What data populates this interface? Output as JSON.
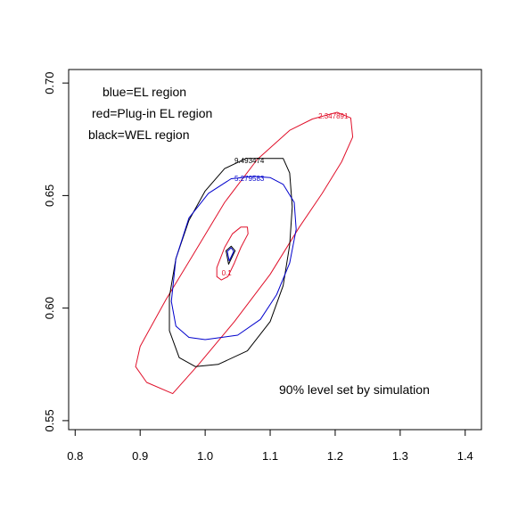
{
  "chart_data": {
    "type": "line",
    "title": "",
    "xlabel": "",
    "ylabel": "",
    "xlim": [
      0.79,
      1.425
    ],
    "ylim": [
      0.546,
      0.706
    ],
    "xticks": [
      "0.8",
      "0.9",
      "1.0",
      "1.1",
      "1.2",
      "1.3",
      "1.4"
    ],
    "xtick_values": [
      0.8,
      0.9,
      1.0,
      1.1,
      1.2,
      1.3,
      1.4
    ],
    "yticks": [
      "0.55",
      "0.60",
      "0.65",
      "0.70"
    ],
    "ytick_values": [
      0.55,
      0.6,
      0.65,
      0.7
    ],
    "grid": false,
    "annotations": [
      "blue=EL region",
      "red=Plug-in EL region",
      "black=WEL region",
      "90% level set by simulation"
    ],
    "series": [
      {
        "color": "#e0102a",
        "label": "2.347891",
        "label_at": [
          1.197,
          0.6843
        ],
        "points": [
          [
            1.165,
            0.684
          ],
          [
            1.203,
            0.687
          ],
          [
            1.224,
            0.6845
          ],
          [
            1.227,
            0.676
          ],
          [
            1.21,
            0.665
          ],
          [
            1.18,
            0.651
          ],
          [
            1.145,
            0.636
          ],
          [
            1.1,
            0.615
          ],
          [
            1.045,
            0.594
          ],
          [
            0.99,
            0.575
          ],
          [
            0.95,
            0.562
          ],
          [
            0.91,
            0.567
          ],
          [
            0.893,
            0.574
          ],
          [
            0.9,
            0.583
          ],
          [
            0.94,
            0.604
          ],
          [
            0.98,
            0.623
          ],
          [
            1.03,
            0.647
          ],
          [
            1.08,
            0.666
          ],
          [
            1.13,
            0.679
          ],
          [
            1.165,
            0.684
          ]
        ]
      },
      {
        "color": "#e0102a",
        "label": "0.1",
        "label_at": [
          1.033,
          0.6145
        ],
        "points": [
          [
            1.055,
            0.636
          ],
          [
            1.065,
            0.636
          ],
          [
            1.066,
            0.633
          ],
          [
            1.055,
            0.627
          ],
          [
            1.045,
            0.62
          ],
          [
            1.035,
            0.614
          ],
          [
            1.025,
            0.6125
          ],
          [
            1.018,
            0.614
          ],
          [
            1.018,
            0.618
          ],
          [
            1.03,
            0.627
          ],
          [
            1.042,
            0.633
          ],
          [
            1.055,
            0.636
          ]
        ]
      },
      {
        "color": "#000000",
        "label": "9.493474",
        "label_at": [
          1.068,
          0.6645
        ],
        "points": [
          [
            1.063,
            0.6665
          ],
          [
            1.12,
            0.6665
          ],
          [
            1.13,
            0.66
          ],
          [
            1.134,
            0.645
          ],
          [
            1.13,
            0.628
          ],
          [
            1.12,
            0.61
          ],
          [
            1.1,
            0.594
          ],
          [
            1.065,
            0.581
          ],
          [
            1.02,
            0.575
          ],
          [
            0.985,
            0.574
          ],
          [
            0.96,
            0.578
          ],
          [
            0.945,
            0.59
          ],
          [
            0.945,
            0.605
          ],
          [
            0.955,
            0.622
          ],
          [
            0.975,
            0.639
          ],
          [
            1.0,
            0.652
          ],
          [
            1.03,
            0.662
          ],
          [
            1.063,
            0.6665
          ]
        ]
      },
      {
        "color": "#0000cc",
        "label": "5.279583",
        "label_at": [
          1.068,
          0.6565
        ],
        "points": [
          [
            1.04,
            0.6575
          ],
          [
            1.075,
            0.6585
          ],
          [
            1.1,
            0.658
          ],
          [
            1.12,
            0.655
          ],
          [
            1.137,
            0.647
          ],
          [
            1.14,
            0.635
          ],
          [
            1.13,
            0.62
          ],
          [
            1.11,
            0.606
          ],
          [
            1.085,
            0.595
          ],
          [
            1.05,
            0.588
          ],
          [
            1.0,
            0.586
          ],
          [
            0.975,
            0.587
          ],
          [
            0.955,
            0.592
          ],
          [
            0.948,
            0.603
          ],
          [
            0.955,
            0.622
          ],
          [
            0.975,
            0.64
          ],
          [
            1.005,
            0.651
          ],
          [
            1.04,
            0.6575
          ]
        ]
      },
      {
        "color": "#000000",
        "points": [
          [
            1.032,
            0.6255
          ],
          [
            1.04,
            0.6275
          ],
          [
            1.046,
            0.6255
          ],
          [
            1.036,
            0.6195
          ],
          [
            1.032,
            0.6255
          ]
        ]
      },
      {
        "color": "#0000cc",
        "points": [
          [
            1.034,
            0.6252
          ],
          [
            1.04,
            0.6268
          ],
          [
            1.044,
            0.6252
          ],
          [
            1.037,
            0.621
          ],
          [
            1.034,
            0.6252
          ]
        ]
      }
    ]
  }
}
